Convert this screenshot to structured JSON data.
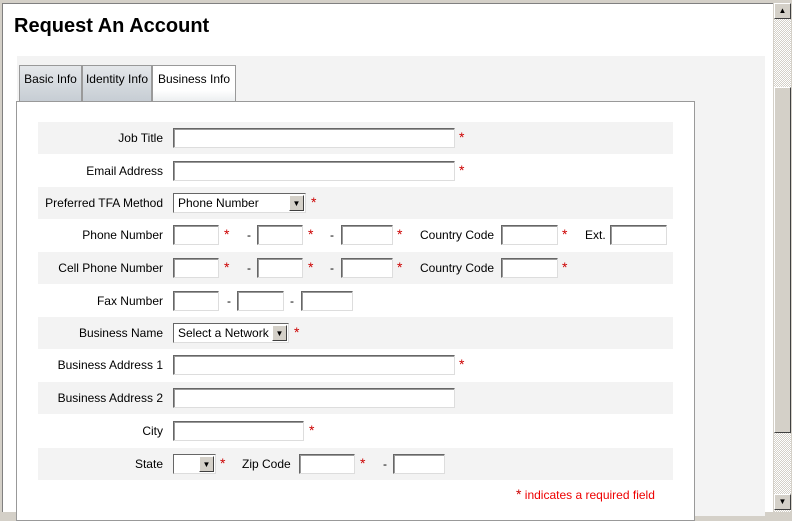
{
  "page": {
    "title": "Request An Account"
  },
  "tabs": [
    {
      "label": "Basic Info",
      "active": false
    },
    {
      "label": "Identity Info",
      "active": false
    },
    {
      "label": "Business Info",
      "active": true
    }
  ],
  "form": {
    "job_title": {
      "label": "Job Title",
      "value": ""
    },
    "email": {
      "label": "Email Address",
      "value": ""
    },
    "tfa": {
      "label": "Preferred TFA Method",
      "value": "Phone Number"
    },
    "phone": {
      "label": "Phone Number",
      "country_code_label": "Country Code",
      "ext_label": "Ext.",
      "sep": "-"
    },
    "cell": {
      "label": "Cell Phone Number",
      "country_code_label": "Country Code",
      "sep": "-"
    },
    "fax": {
      "label": "Fax Number",
      "sep": "-"
    },
    "business_name": {
      "label": "Business Name",
      "value": "Select a Network"
    },
    "addr1": {
      "label": "Business Address 1",
      "value": ""
    },
    "addr2": {
      "label": "Business Address 2",
      "value": ""
    },
    "city": {
      "label": "City",
      "value": ""
    },
    "state": {
      "label": "State",
      "value": "",
      "zip_label": "Zip Code",
      "sep": "-"
    },
    "required_star": "*",
    "required_note": "indicates a required field"
  },
  "colors": {
    "required": "#cc0000",
    "note": "#ee0000",
    "row_alt": "#f3f3f3"
  }
}
